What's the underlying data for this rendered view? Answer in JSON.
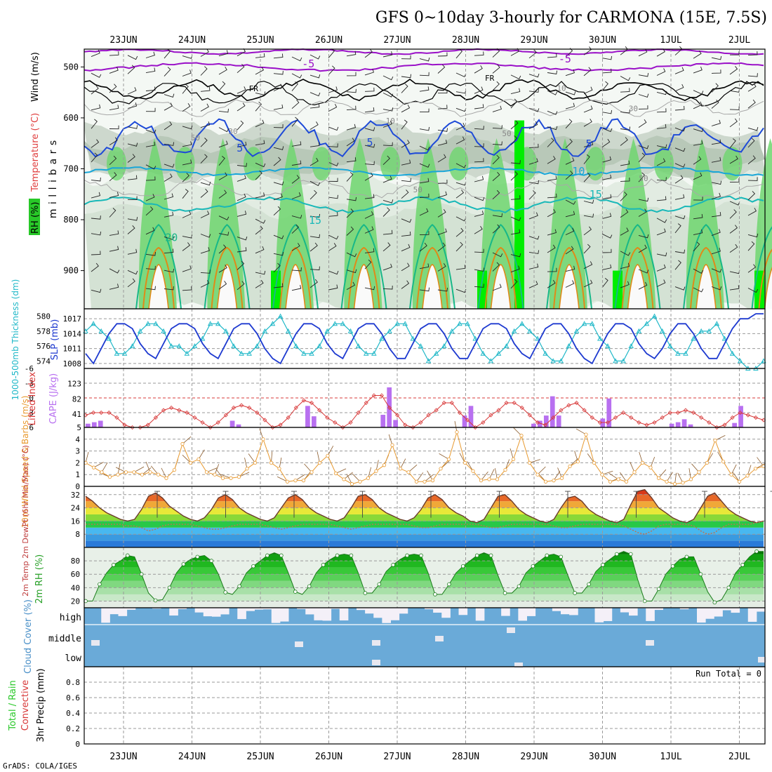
{
  "title": "GFS 0~10day 3-hourly for CARMONA (15E, 7.5S)",
  "credit": "GrADS: COLA/IGES",
  "run_total": "Run Total = 0",
  "colors": {
    "temp_purple": "#9a10c8",
    "temp_blue": "#1e4ad8",
    "temp_cyan": "#18a6d8",
    "temp_teal": "#18b8b8",
    "temp_green": "#18b888",
    "temp_orange": "#e08a18",
    "rh_green": "#28c828",
    "rh_grey": "#c8d0c8",
    "slp": "#1e3ad0",
    "thick": "#20b8c8",
    "li": "#d83838",
    "cape": "#b870f0",
    "wind": "#e89a30",
    "cloud": "#6aaad8",
    "rh2m": "#28c828"
  },
  "chart_data": [
    {
      "type": "contour",
      "panel": "upper-air",
      "x_dates": [
        "23JUN",
        "24JUN",
        "25JUN",
        "26JUN",
        "27JUN",
        "28JUN",
        "29JUN",
        "30JUN",
        "1JUL",
        "2JUL"
      ],
      "ylabel": "m i l l i b a r s",
      "ylim": [
        465,
        975
      ],
      "yticks": [
        500,
        600,
        700,
        800,
        900
      ],
      "legend": [
        "RH (%)",
        "Temperature (°C)",
        "Wind (m/s)"
      ],
      "contour_labels": [
        {
          "text": "-5",
          "day": 2.7,
          "p": 501
        },
        {
          "text": "-5",
          "day": 6.45,
          "p": 491
        },
        {
          "text": "FR",
          "day": 1.9,
          "p": 548
        },
        {
          "text": "FR",
          "day": 5.35,
          "p": 527
        },
        {
          "text": "5",
          "day": 1.7,
          "p": 666
        },
        {
          "text": "5",
          "day": 3.6,
          "p": 655
        },
        {
          "text": "5",
          "day": 6.8,
          "p": 658
        },
        {
          "text": "10",
          "day": 6.65,
          "p": 712
        },
        {
          "text": "15",
          "day": 2.8,
          "p": 808
        },
        {
          "text": "15",
          "day": 6.9,
          "p": 757
        },
        {
          "text": "20",
          "day": 0.7,
          "p": 842
        }
      ],
      "grey_labels": [
        {
          "text": "50",
          "day": 1.05,
          "p": 644
        },
        {
          "text": "30",
          "day": 1.6,
          "p": 632
        },
        {
          "text": "50",
          "day": 4.3,
          "p": 746
        },
        {
          "text": "10",
          "day": 3.9,
          "p": 611
        },
        {
          "text": "10",
          "day": 6.4,
          "p": 547
        },
        {
          "text": "30",
          "day": 7.45,
          "p": 587
        },
        {
          "text": "50",
          "day": 7.6,
          "p": 724
        },
        {
          "text": "50",
          "day": 5.6,
          "p": 636
        }
      ]
    },
    {
      "type": "line",
      "panel": "slp-thickness",
      "ylabel_left": "1000-500mb Thickness (dm)",
      "ylabel_right": "SLP (mb)",
      "thickness_ticks": [
        574,
        576,
        578,
        580
      ],
      "slp_ticks": [
        1008,
        1011,
        1014,
        1017
      ],
      "slp_ylim": [
        1007,
        1019
      ],
      "thick_ylim": [
        573,
        581
      ],
      "series": [
        {
          "name": "SLP (mb)",
          "values": [
            1010,
            1008,
            1011,
            1014,
            1016,
            1016,
            1015,
            1012,
            1010,
            1009,
            1012,
            1015,
            1016,
            1016,
            1015,
            1012,
            1010,
            1009,
            1012,
            1015,
            1016,
            1016,
            1014,
            1011,
            1009,
            1008,
            1011,
            1014,
            1016,
            1016,
            1015,
            1012,
            1010,
            1009,
            1012,
            1015,
            1016,
            1016,
            1014,
            1011,
            1009,
            1009,
            1012,
            1015,
            1016,
            1016,
            1014,
            1011,
            1009,
            1009,
            1012,
            1015,
            1016,
            1016,
            1015,
            1012,
            1010,
            1009,
            1012,
            1015,
            1016,
            1016,
            1014,
            1011,
            1009,
            1008,
            1011,
            1014,
            1016,
            1016,
            1015,
            1012,
            1010,
            1009,
            1011,
            1014,
            1016,
            1016,
            1014,
            1011,
            1009,
            1009,
            1012,
            1015,
            1017,
            1017,
            1018,
            1018
          ]
        },
        {
          "name": "1000-500mb Thickness (dm)",
          "values": [
            578,
            579,
            578,
            577,
            575,
            575,
            576,
            578,
            579,
            579,
            578,
            576,
            576,
            575,
            576,
            577,
            579,
            579,
            578,
            576,
            575,
            575,
            576,
            578,
            579,
            580,
            578,
            576,
            575,
            575,
            576,
            578,
            579,
            579,
            578,
            576,
            575,
            575,
            577,
            578,
            579,
            579,
            577,
            576,
            574,
            575,
            576,
            578,
            579,
            579,
            577,
            575,
            574,
            575,
            576,
            578,
            579,
            578,
            577,
            575,
            574,
            574,
            576,
            578,
            579,
            579,
            577,
            576,
            574,
            574,
            576,
            578,
            579,
            580,
            578,
            576,
            575,
            575,
            577,
            578,
            578,
            579,
            577,
            575,
            574,
            573,
            573,
            574
          ]
        }
      ]
    },
    {
      "type": "bar+line",
      "panel": "lifted-index-cape",
      "ylabel_left": "Lifted Index",
      "ylabel_right": "CAPE (J/kg)",
      "li_ticks": [
        "-6",
        "-3",
        "0",
        "3",
        "6"
      ],
      "cape_ticks": [
        5,
        41,
        82,
        123
      ],
      "li_ylim": [
        -6,
        6
      ],
      "cape_ylim": [
        5,
        164
      ],
      "li_values": [
        3.5,
        3,
        3,
        3,
        4,
        5.5,
        6,
        6,
        5.5,
        4,
        2.5,
        2,
        2.5,
        3,
        4,
        5,
        6,
        5,
        3.5,
        2,
        1.5,
        2,
        3,
        4.5,
        6,
        5.5,
        4,
        2,
        0.5,
        1,
        2.5,
        4,
        5,
        6,
        5,
        3,
        1,
        -0.5,
        -0.5,
        2,
        3.5,
        5.5,
        6,
        5,
        3.5,
        2.5,
        1,
        1,
        3,
        4.5,
        6,
        5,
        3.5,
        2.5,
        1,
        1,
        2,
        3.5,
        5,
        5.5,
        4,
        2.5,
        1.5,
        1,
        2.5,
        4,
        5,
        5,
        4,
        3,
        4,
        5,
        5.5,
        5,
        4,
        3,
        3,
        2.5,
        3,
        4,
        5,
        6,
        5.5,
        4,
        3,
        3.5,
        4,
        4.5
      ],
      "cape_values": [
        10,
        14,
        18,
        0,
        0,
        0,
        0,
        0,
        0,
        0,
        0,
        0,
        0,
        0,
        0,
        0,
        0,
        0,
        0,
        0,
        0,
        0,
        0,
        18,
        8,
        0,
        0,
        0,
        0,
        0,
        0,
        0,
        0,
        0,
        0,
        58,
        30,
        0,
        0,
        0,
        0,
        0,
        0,
        0,
        0,
        0,
        0,
        34,
        108,
        20,
        0,
        0,
        0,
        0,
        0,
        0,
        0,
        0,
        0,
        0,
        32,
        58,
        0,
        0,
        0,
        0,
        0,
        0,
        0,
        0,
        0,
        10,
        18,
        32,
        84,
        32,
        0,
        0,
        0,
        0,
        0,
        0,
        24,
        78,
        0,
        0,
        0,
        0,
        0,
        0,
        0,
        0,
        0,
        10,
        14,
        22,
        8,
        0,
        0,
        0,
        0,
        0,
        0,
        12,
        58,
        0,
        0,
        0
      ]
    },
    {
      "type": "line",
      "panel": "10m-wind",
      "ylabel": "10m Wind Speed & Barbs (m/s)",
      "yticks": [
        0,
        1,
        2,
        3,
        4
      ],
      "ylim": [
        0,
        5
      ],
      "values": [
        2,
        1.6,
        1.2,
        0.8,
        1,
        1.2,
        1.2,
        1,
        1.2,
        1,
        0.7,
        1.4,
        3.6,
        2,
        2.3,
        1.2,
        1,
        0.7,
        0.7,
        0.8,
        1.5,
        2,
        4,
        2,
        1.5,
        0.4,
        0.5,
        0.5,
        1.2,
        2,
        2.6,
        1.1,
        0.6,
        0.2,
        0.4,
        0.7,
        1.3,
        1.8,
        3.5,
        1.5,
        1.2,
        0.4,
        0.4,
        0.5,
        1.5,
        2.3,
        4.6,
        2,
        1.3,
        0.5,
        0.6,
        0.6,
        1.4,
        2.3,
        4.3,
        2,
        1,
        0.4,
        0.5,
        0.7,
        1.7,
        2.1,
        4.4,
        2,
        1,
        0.4,
        0.6,
        0.4,
        1.2,
        2,
        1.6,
        0.7,
        0.4,
        0.2,
        0.3,
        0.6,
        1.2,
        2,
        3.9,
        2.1,
        1,
        0.4,
        0.9,
        1.5,
        1.7
      ]
    },
    {
      "type": "area",
      "panel": "2m-temp",
      "ylabel": "2m Temp 2m DewPt (6hr Min/Max) (°C)",
      "yticks": [
        8,
        16,
        24,
        32
      ],
      "ylim": [
        0,
        37
      ],
      "temp": [
        31,
        28,
        24,
        21,
        19,
        17,
        16,
        17,
        23,
        31,
        33,
        30,
        25,
        22,
        19,
        17,
        16,
        18,
        23,
        30,
        32,
        29,
        24,
        21,
        19,
        17,
        16,
        18,
        24,
        30,
        32,
        29,
        24,
        21,
        19,
        17,
        16,
        18,
        24,
        31,
        32,
        29,
        24,
        21,
        19,
        17,
        16,
        18,
        23,
        30,
        32,
        29,
        24,
        21,
        19,
        16,
        15,
        17,
        24,
        31,
        32,
        28,
        23,
        20,
        18,
        16,
        15,
        17,
        24,
        30,
        31,
        28,
        23,
        20,
        18,
        16,
        15,
        17,
        26,
        34,
        35,
        30,
        24,
        21,
        18,
        16,
        15,
        17,
        24,
        31,
        33,
        28,
        23,
        20,
        18,
        16,
        15,
        16
      ],
      "dewpt": [
        14,
        14,
        14,
        14,
        14,
        14,
        13,
        13,
        12,
        10,
        11,
        13,
        14,
        14,
        14,
        14,
        13,
        12,
        11,
        11,
        12,
        13,
        14,
        14,
        14,
        14,
        13,
        12,
        11,
        12,
        13,
        14,
        14,
        14,
        14,
        14,
        13,
        12,
        11,
        12,
        13,
        14,
        14,
        14,
        14,
        14,
        14,
        13,
        12,
        12,
        13,
        14,
        14,
        14,
        14,
        14,
        14,
        13,
        12,
        12,
        13,
        14,
        14,
        14,
        14,
        14,
        14,
        13,
        12,
        12,
        13,
        14,
        14,
        14,
        14,
        14,
        14,
        13,
        11,
        9,
        8,
        10,
        13,
        14,
        14,
        14,
        14,
        13,
        10,
        8,
        9,
        12,
        14,
        14,
        14,
        14,
        15,
        16
      ]
    },
    {
      "type": "area",
      "panel": "2m-rh",
      "ylabel": "2m RH (%)",
      "yticks": [
        20,
        40,
        60,
        80
      ],
      "ylim": [
        10,
        100
      ],
      "values": [
        20,
        20,
        45,
        62,
        74,
        80,
        88,
        86,
        60,
        32,
        21,
        22,
        40,
        62,
        75,
        82,
        86,
        88,
        80,
        60,
        33,
        30,
        42,
        62,
        72,
        80,
        88,
        92,
        88,
        62,
        34,
        30,
        42,
        62,
        74,
        82,
        88,
        90,
        88,
        62,
        32,
        32,
        45,
        64,
        74,
        82,
        88,
        90,
        88,
        62,
        30,
        30,
        45,
        62,
        72,
        80,
        88,
        92,
        88,
        58,
        32,
        32,
        42,
        62,
        72,
        80,
        88,
        90,
        86,
        58,
        32,
        32,
        45,
        64,
        74,
        82,
        90,
        94,
        90,
        52,
        20,
        20,
        38,
        60,
        72,
        82,
        86,
        86,
        60,
        34,
        18,
        22,
        40,
        62,
        74,
        86,
        94,
        94
      ]
    },
    {
      "type": "heatmap",
      "panel": "cloud-cover",
      "ylabel": "Cloud Cover (%)",
      "levels": [
        "high",
        "middle",
        "low"
      ]
    },
    {
      "type": "bar",
      "panel": "precip",
      "ylabel_left": "Total / Rain",
      "ylabel_left2": "Convective",
      "ylabel": "3hr Precip (mm)",
      "yticks": [
        "0",
        "0.2",
        "0.4",
        "0.6",
        "0.8"
      ],
      "ylim": [
        0,
        1
      ],
      "values": []
    }
  ]
}
